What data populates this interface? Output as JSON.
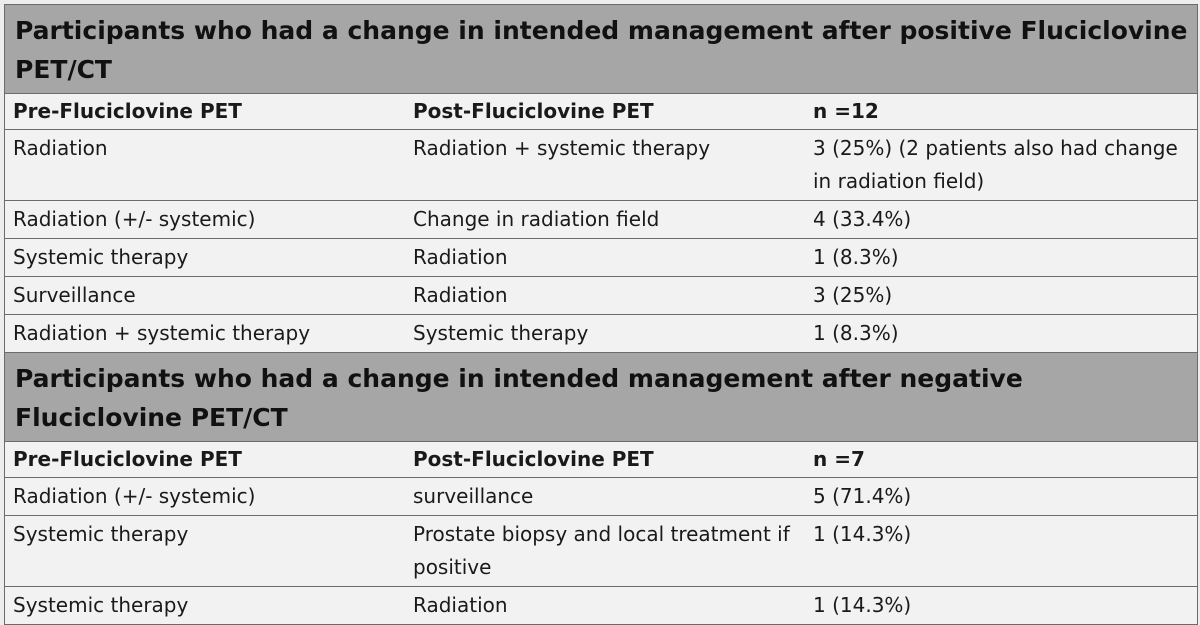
{
  "positive": {
    "title": "Participants who had a change in intended management after positive Fluciclovine PET/CT",
    "headers": [
      "Pre-Fluciclovine PET",
      "Post-Fluciclovine PET",
      "n =12"
    ],
    "rows": [
      [
        "Radiation",
        "Radiation + systemic therapy",
        "3 (25%) (2 patients also had change in radiation field)"
      ],
      [
        "Radiation (+/- systemic)",
        "Change in radiation field",
        "4 (33.4%)"
      ],
      [
        "Systemic therapy",
        "Radiation",
        "1 (8.3%)"
      ],
      [
        "Surveillance",
        "Radiation",
        "3 (25%)"
      ],
      [
        "Radiation + systemic therapy",
        "Systemic therapy",
        "1 (8.3%)"
      ]
    ]
  },
  "negative": {
    "title": "Participants who had a change in intended management after negative Fluciclovine PET/CT",
    "headers": [
      "Pre-Fluciclovine PET",
      "Post-Fluciclovine PET",
      "n =7"
    ],
    "rows": [
      [
        "Radiation (+/- systemic)",
        "surveillance",
        "5 (71.4%)"
      ],
      [
        "Systemic therapy",
        "Prostate biopsy and local treatment if positive",
        "1 (14.3%)"
      ],
      [
        "Systemic therapy",
        "Radiation",
        "1 (14.3%)"
      ]
    ]
  }
}
